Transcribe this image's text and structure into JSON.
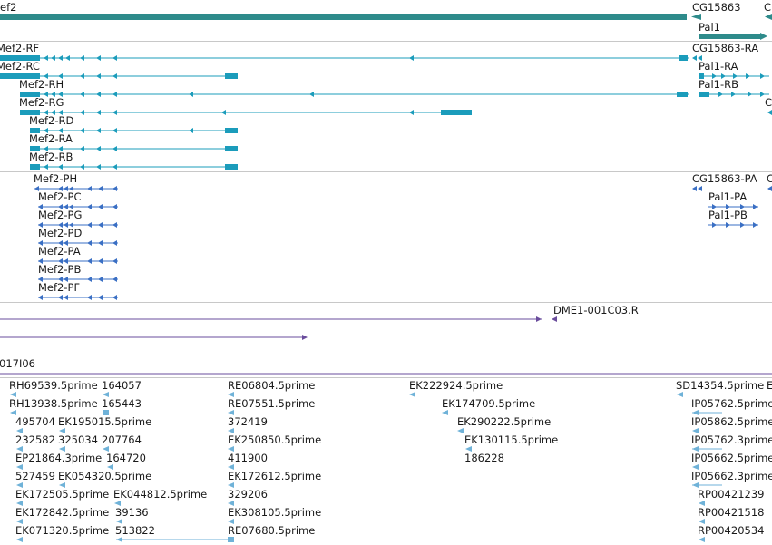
{
  "colors": {
    "gene": "#2e8b8b",
    "transcript": "#1b9cbb",
    "protein": "#3a6fc4",
    "clone": "#6a4c9c",
    "est": "#6fb2d8",
    "divider": "#c8c8c8",
    "text": "#1a1a1a"
  },
  "genes": {
    "mef2_label": "ef2",
    "cg15863_label": "CG15863",
    "pal1_label": "Pal1",
    "cut_label": "C"
  },
  "transcripts": [
    {
      "label": "Mef2-RF"
    },
    {
      "label": "Mef2-RC"
    },
    {
      "label": "Mef2-RH"
    },
    {
      "label": "Mef2-RG"
    },
    {
      "label": "Mef2-RD"
    },
    {
      "label": "Mef2-RA"
    },
    {
      "label": "Mef2-RB"
    },
    {
      "label": "CG15863-RA"
    },
    {
      "label": "Pal1-RA"
    },
    {
      "label": "Pal1-RB"
    },
    {
      "label": "C"
    }
  ],
  "proteins": [
    {
      "label": "Mef2-PH"
    },
    {
      "label": "Mef2-PC"
    },
    {
      "label": "Mef2-PG"
    },
    {
      "label": "Mef2-PD"
    },
    {
      "label": "Mef2-PA"
    },
    {
      "label": "Mef2-PB"
    },
    {
      "label": "Mef2-PF"
    },
    {
      "label": "CG15863-PA"
    },
    {
      "label": "C"
    },
    {
      "label": "Pal1-PA"
    },
    {
      "label": "Pal1-PB"
    }
  ],
  "clones": [
    {
      "label": "DME1-001C03.R"
    },
    {
      "label": "017I06"
    }
  ],
  "ests": [
    {
      "label": "RH69539.5prime"
    },
    {
      "label": "164057"
    },
    {
      "label": "RH13938.5prime"
    },
    {
      "label": "165443"
    },
    {
      "label": "495704"
    },
    {
      "label": "EK195015.5prime"
    },
    {
      "label": "232582"
    },
    {
      "label": "325034"
    },
    {
      "label": "207764"
    },
    {
      "label": "EP21864.3prime"
    },
    {
      "label": "164720"
    },
    {
      "label": "527459"
    },
    {
      "label": "EK054320.5prime"
    },
    {
      "label": "EK172505.5prime"
    },
    {
      "label": "EK044812.5prime"
    },
    {
      "label": "EK172842.5prime"
    },
    {
      "label": "39136"
    },
    {
      "label": "EK071320.5prime"
    },
    {
      "label": "513822"
    },
    {
      "label": "RE06804.5prime"
    },
    {
      "label": "RE07551.5prime"
    },
    {
      "label": "372419"
    },
    {
      "label": "EK250850.5prime"
    },
    {
      "label": "411900"
    },
    {
      "label": "EK172612.5prime"
    },
    {
      "label": "329206"
    },
    {
      "label": "EK308105.5prime"
    },
    {
      "label": "RE07680.5prime"
    },
    {
      "label": "EK222924.5prime"
    },
    {
      "label": "EK174709.5prime"
    },
    {
      "label": "EK290222.5prime"
    },
    {
      "label": "EK130115.5prime"
    },
    {
      "label": "186228"
    },
    {
      "label": "SD14354.5prime"
    },
    {
      "label": "E"
    },
    {
      "label": "IP05762.5prime"
    },
    {
      "label": "IP05862.5prime"
    },
    {
      "label": "IP05762.3prime"
    },
    {
      "label": "IP05662.5prime"
    },
    {
      "label": "IP05662.3prime"
    },
    {
      "label": "RP00421239"
    },
    {
      "label": "RP00421518"
    },
    {
      "label": "RP00420534"
    }
  ]
}
